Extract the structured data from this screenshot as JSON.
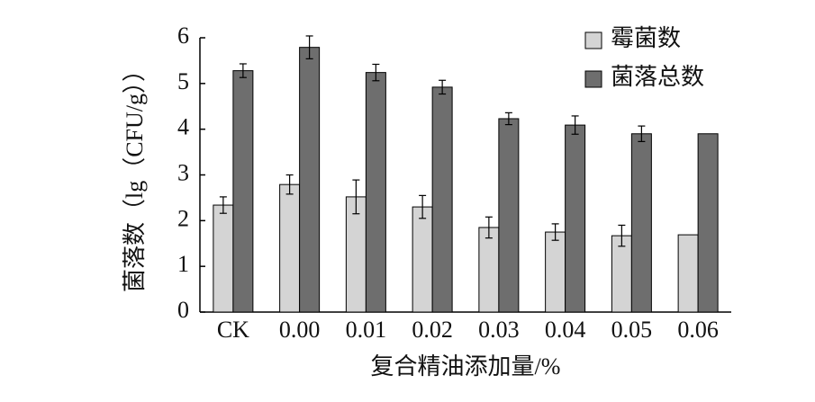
{
  "chart_data": {
    "type": "bar",
    "x_label": "复合精油添加量/%",
    "y_label": "菌落数（lg（CFU/g））",
    "categories": [
      "CK",
      "0.00",
      "0.01",
      "0.02",
      "0.03",
      "0.04",
      "0.05",
      "0.06"
    ],
    "series": [
      {
        "name": "霉菌数",
        "color": "#d4d4d4",
        "values": [
          2.34,
          2.79,
          2.52,
          2.3,
          1.85,
          1.75,
          1.67,
          1.69
        ],
        "errors": [
          0.18,
          0.21,
          0.37,
          0.25,
          0.23,
          0.18,
          0.23,
          null
        ]
      },
      {
        "name": "菌落总数",
        "color": "#6e6e6e",
        "values": [
          5.28,
          5.79,
          5.24,
          4.92,
          4.23,
          4.09,
          3.9,
          3.9
        ],
        "errors": [
          0.15,
          0.25,
          0.18,
          0.15,
          0.13,
          0.2,
          0.17,
          null
        ]
      }
    ],
    "ylim": [
      0,
      6
    ],
    "yticks": [
      0,
      1,
      2,
      3,
      4,
      5,
      6
    ],
    "legend": "upper-right"
  }
}
